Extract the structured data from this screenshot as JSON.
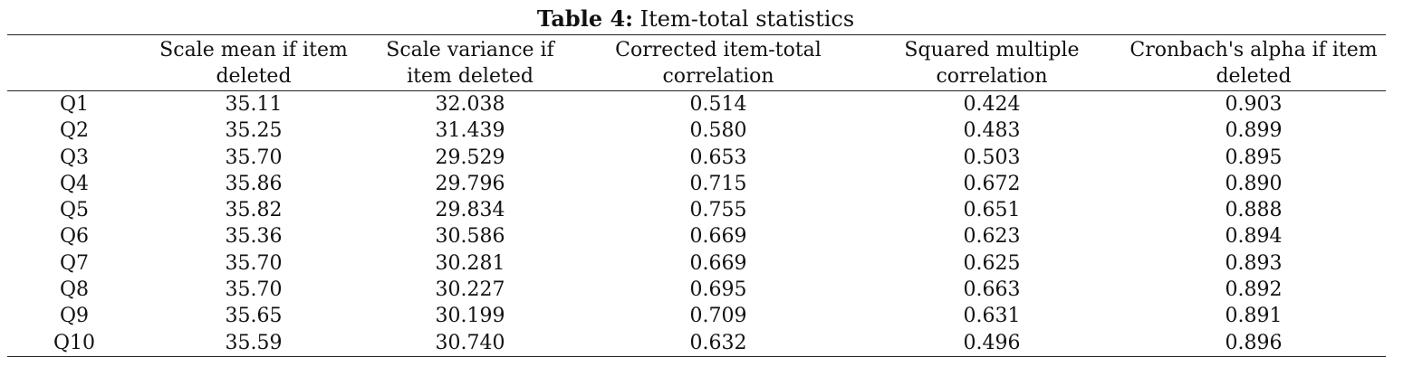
{
  "caption": {
    "label": "Table 4:",
    "title": "Item-total statistics"
  },
  "table": {
    "headers": [
      "",
      "Scale mean if item deleted",
      "Scale variance if item deleted",
      "Corrected item-total correlation",
      "Squared multiple correlation",
      "Cronbach's alpha if item deleted"
    ],
    "rows": [
      [
        "Q1",
        "35.11",
        "32.038",
        "0.514",
        "0.424",
        "0.903"
      ],
      [
        "Q2",
        "35.25",
        "31.439",
        "0.580",
        "0.483",
        "0.899"
      ],
      [
        "Q3",
        "35.70",
        "29.529",
        "0.653",
        "0.503",
        "0.895"
      ],
      [
        "Q4",
        "35.86",
        "29.796",
        "0.715",
        "0.672",
        "0.890"
      ],
      [
        "Q5",
        "35.82",
        "29.834",
        "0.755",
        "0.651",
        "0.888"
      ],
      [
        "Q6",
        "35.36",
        "30.586",
        "0.669",
        "0.623",
        "0.894"
      ],
      [
        "Q7",
        "35.70",
        "30.281",
        "0.669",
        "0.625",
        "0.893"
      ],
      [
        "Q8",
        "35.70",
        "30.227",
        "0.695",
        "0.663",
        "0.892"
      ],
      [
        "Q9",
        "35.65",
        "30.199",
        "0.709",
        "0.631",
        "0.891"
      ],
      [
        "Q10",
        "35.59",
        "30.740",
        "0.632",
        "0.496",
        "0.896"
      ]
    ]
  }
}
